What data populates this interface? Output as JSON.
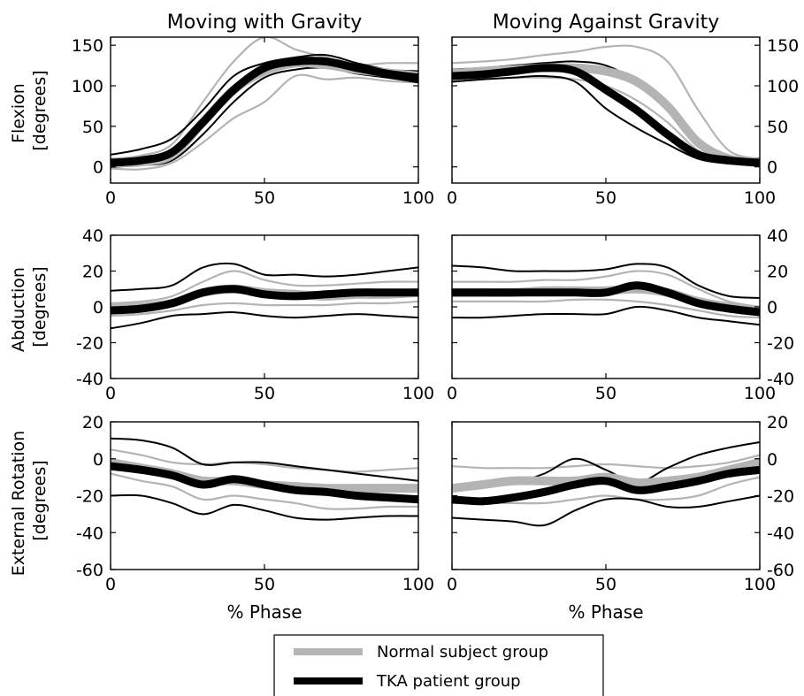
{
  "chart_data": {
    "type": "line",
    "column_titles": [
      "Moving with Gravity",
      "Moving Against Gravity"
    ],
    "xlabel": "% Phase",
    "xlim": [
      0,
      100
    ],
    "xticks": [
      0,
      50,
      100
    ],
    "rows": [
      {
        "ylabel": [
          "Flexion",
          "[degrees]"
        ],
        "ylim": [
          -20,
          160
        ],
        "yticks": [
          0,
          50,
          100,
          150
        ]
      },
      {
        "ylabel": [
          "Abduction",
          "[degrees]"
        ],
        "ylim": [
          -40,
          40
        ],
        "yticks": [
          -40,
          -20,
          0,
          20,
          40
        ]
      },
      {
        "ylabel": [
          "External Rotation",
          "[degrees]"
        ],
        "ylim": [
          -60,
          20
        ],
        "yticks": [
          -60,
          -40,
          -20,
          0,
          20
        ]
      }
    ],
    "legend": {
      "placement": "bottom-center",
      "entries": [
        {
          "label": "Normal subject group",
          "color": "#b4b4b4"
        },
        {
          "label": "TKA patient group",
          "color": "#000000"
        }
      ]
    },
    "panels": [
      {
        "row": 0,
        "col": 0,
        "x": [
          0,
          10,
          20,
          30,
          40,
          50,
          60,
          70,
          80,
          90,
          100
        ],
        "series": [
          {
            "group": "normal",
            "kind": "mean",
            "values": [
              5,
              6,
              15,
              55,
              95,
              118,
              128,
              126,
              120,
              116,
              112
            ]
          },
          {
            "group": "normal",
            "kind": "upper",
            "values": [
              10,
              14,
              28,
              80,
              130,
              160,
              145,
              135,
              126,
              128,
              128
            ]
          },
          {
            "group": "normal",
            "kind": "lower",
            "values": [
              -2,
              -3,
              5,
              30,
              60,
              80,
              112,
              108,
              110,
              106,
              104
            ]
          },
          {
            "group": "tka",
            "kind": "mean",
            "values": [
              5,
              8,
              18,
              55,
              95,
              122,
              130,
              130,
              122,
              115,
              110
            ]
          },
          {
            "group": "tka",
            "kind": "upper",
            "values": [
              15,
              22,
              35,
              70,
              112,
              128,
              135,
              138,
              128,
              120,
              118
            ]
          },
          {
            "group": "tka",
            "kind": "lower",
            "values": [
              0,
              2,
              8,
              40,
              80,
              110,
              120,
              122,
              115,
              110,
              104
            ]
          }
        ]
      },
      {
        "row": 0,
        "col": 1,
        "x": [
          0,
          10,
          20,
          30,
          40,
          50,
          60,
          70,
          80,
          90,
          100
        ],
        "series": [
          {
            "group": "normal",
            "kind": "mean",
            "values": [
              115,
              118,
              120,
              122,
              122,
              118,
              105,
              75,
              30,
              10,
              5
            ]
          },
          {
            "group": "normal",
            "kind": "upper",
            "values": [
              128,
              130,
              133,
              138,
              142,
              148,
              148,
              130,
              70,
              20,
              10
            ]
          },
          {
            "group": "normal",
            "kind": "lower",
            "values": [
              105,
              108,
              110,
              110,
              108,
              100,
              82,
              55,
              20,
              5,
              2
            ]
          },
          {
            "group": "tka",
            "kind": "mean",
            "values": [
              112,
              114,
              118,
              122,
              118,
              95,
              70,
              40,
              15,
              8,
              5
            ]
          },
          {
            "group": "tka",
            "kind": "upper",
            "values": [
              120,
              122,
              125,
              128,
              130,
              125,
              105,
              70,
              30,
              12,
              10
            ]
          },
          {
            "group": "tka",
            "kind": "lower",
            "values": [
              105,
              108,
              110,
              112,
              105,
              72,
              48,
              28,
              10,
              4,
              2
            ]
          }
        ]
      },
      {
        "row": 1,
        "col": 0,
        "x": [
          0,
          10,
          20,
          30,
          40,
          50,
          60,
          70,
          80,
          90,
          100
        ],
        "series": [
          {
            "group": "normal",
            "kind": "mean",
            "values": [
              -1,
              0,
              2,
              8,
              10,
              8,
              7,
              6,
              7,
              7,
              8
            ]
          },
          {
            "group": "normal",
            "kind": "upper",
            "values": [
              2,
              3,
              6,
              14,
              20,
              15,
              12,
              12,
              13,
              14,
              14
            ]
          },
          {
            "group": "normal",
            "kind": "lower",
            "values": [
              -5,
              -4,
              -2,
              1,
              2,
              1,
              1,
              1,
              2,
              2,
              3
            ]
          },
          {
            "group": "tka",
            "kind": "mean",
            "values": [
              -2,
              -1,
              2,
              8,
              10,
              7,
              6,
              7,
              8,
              8,
              8
            ]
          },
          {
            "group": "tka",
            "kind": "upper",
            "values": [
              9,
              10,
              12,
              22,
              24,
              18,
              18,
              17,
              18,
              20,
              22
            ]
          },
          {
            "group": "tka",
            "kind": "lower",
            "values": [
              -12,
              -9,
              -5,
              -4,
              -3,
              -5,
              -6,
              -5,
              -4,
              -5,
              -6
            ]
          }
        ]
      },
      {
        "row": 1,
        "col": 1,
        "x": [
          0,
          10,
          20,
          30,
          40,
          50,
          60,
          70,
          80,
          90,
          100
        ],
        "series": [
          {
            "group": "normal",
            "kind": "mean",
            "values": [
              8,
              8,
              8,
              9,
              9,
              9,
              10,
              8,
              3,
              0,
              -2
            ]
          },
          {
            "group": "normal",
            "kind": "upper",
            "values": [
              14,
              14,
              14,
              15,
              15,
              17,
              20,
              18,
              10,
              3,
              0
            ]
          },
          {
            "group": "normal",
            "kind": "lower",
            "values": [
              3,
              3,
              3,
              3,
              4,
              4,
              3,
              1,
              -2,
              -5,
              -6
            ]
          },
          {
            "group": "tka",
            "kind": "mean",
            "values": [
              8,
              8,
              8,
              8,
              8,
              8,
              12,
              8,
              2,
              -1,
              -3
            ]
          },
          {
            "group": "tka",
            "kind": "upper",
            "values": [
              23,
              22,
              20,
              20,
              20,
              21,
              24,
              22,
              12,
              6,
              5
            ]
          },
          {
            "group": "tka",
            "kind": "lower",
            "values": [
              -6,
              -6,
              -5,
              -4,
              -4,
              -4,
              0,
              -2,
              -6,
              -8,
              -10
            ]
          }
        ]
      },
      {
        "row": 2,
        "col": 0,
        "x": [
          0,
          10,
          20,
          30,
          40,
          50,
          60,
          70,
          80,
          90,
          100
        ],
        "series": [
          {
            "group": "normal",
            "kind": "mean",
            "values": [
              -2,
              -5,
              -8,
              -12,
              -12,
              -14,
              -15,
              -16,
              -16,
              -16,
              -16
            ]
          },
          {
            "group": "normal",
            "kind": "upper",
            "values": [
              5,
              2,
              -2,
              -3,
              -2,
              -3,
              -5,
              -6,
              -7,
              -6,
              -5
            ]
          },
          {
            "group": "normal",
            "kind": "lower",
            "values": [
              -8,
              -12,
              -15,
              -22,
              -20,
              -22,
              -24,
              -27,
              -27,
              -26,
              -26
            ]
          },
          {
            "group": "tka",
            "kind": "mean",
            "values": [
              -4,
              -6,
              -9,
              -14,
              -11,
              -14,
              -17,
              -18,
              -20,
              -21,
              -22
            ]
          },
          {
            "group": "tka",
            "kind": "upper",
            "values": [
              11,
              10,
              6,
              -3,
              -2,
              -2,
              -4,
              -6,
              -8,
              -10,
              -12
            ]
          },
          {
            "group": "tka",
            "kind": "lower",
            "values": [
              -20,
              -20,
              -24,
              -30,
              -25,
              -28,
              -32,
              -33,
              -32,
              -31,
              -31
            ]
          }
        ]
      },
      {
        "row": 2,
        "col": 1,
        "x": [
          0,
          10,
          20,
          30,
          40,
          50,
          60,
          70,
          80,
          90,
          100
        ],
        "series": [
          {
            "group": "normal",
            "kind": "mean",
            "values": [
              -16,
              -14,
              -12,
              -12,
              -12,
              -10,
              -13,
              -12,
              -10,
              -6,
              -2
            ]
          },
          {
            "group": "normal",
            "kind": "upper",
            "values": [
              -4,
              -5,
              -5,
              -5,
              -4,
              -3,
              -4,
              -5,
              -4,
              -2,
              2
            ]
          },
          {
            "group": "normal",
            "kind": "lower",
            "values": [
              -24,
              -24,
              -24,
              -24,
              -22,
              -20,
              -22,
              -22,
              -20,
              -14,
              -10
            ]
          },
          {
            "group": "tka",
            "kind": "mean",
            "values": [
              -22,
              -23,
              -21,
              -18,
              -14,
              -12,
              -17,
              -15,
              -12,
              -8,
              -6
            ]
          },
          {
            "group": "tka",
            "kind": "upper",
            "values": [
              -14,
              -14,
              -13,
              -8,
              0,
              -6,
              -13,
              -5,
              2,
              6,
              9
            ]
          },
          {
            "group": "tka",
            "kind": "lower",
            "values": [
              -32,
              -33,
              -34,
              -36,
              -28,
              -22,
              -22,
              -26,
              -26,
              -23,
              -20
            ]
          }
        ]
      }
    ]
  }
}
